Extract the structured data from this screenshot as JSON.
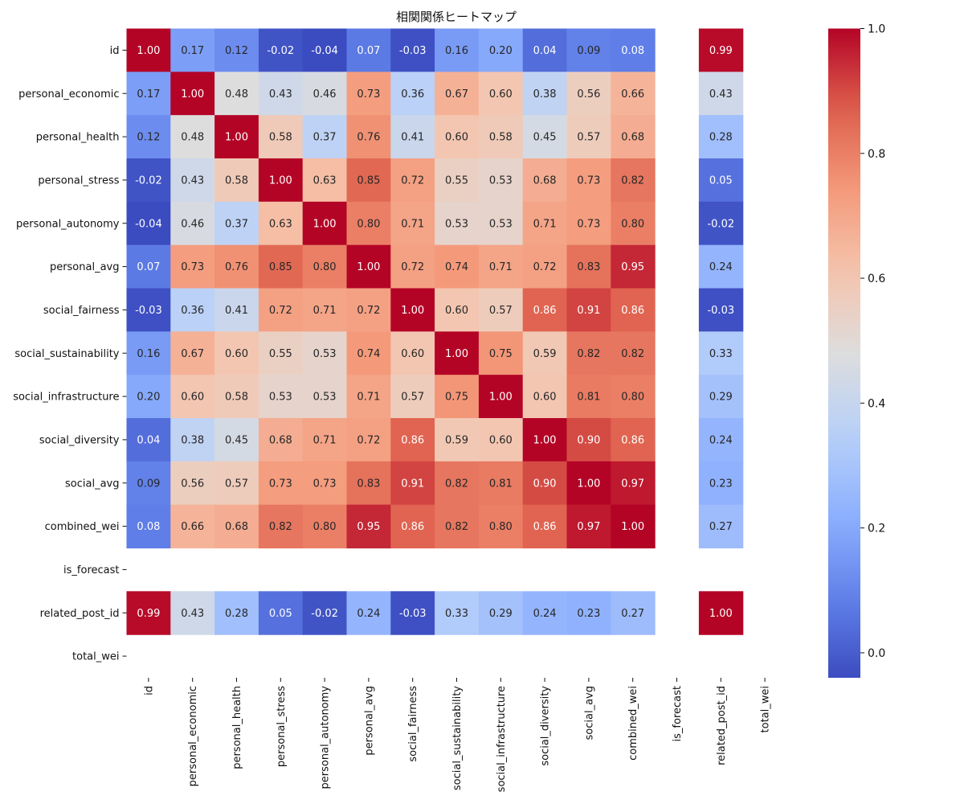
{
  "chart_data": {
    "type": "heatmap",
    "title": "相関関係ヒートマップ",
    "xlabel": "",
    "ylabel": "",
    "labels": [
      "id",
      "personal_economic",
      "personal_health",
      "personal_stress",
      "personal_autonomy",
      "personal_avg",
      "social_fairness",
      "social_sustainability",
      "social_infrastructure",
      "social_diversity",
      "social_avg",
      "combined_wei",
      "is_forecast",
      "related_post_id",
      "total_wei"
    ],
    "values": [
      [
        1.0,
        0.17,
        0.12,
        -0.02,
        -0.04,
        0.07,
        -0.03,
        0.16,
        0.2,
        0.04,
        0.09,
        0.08,
        null,
        0.99,
        null
      ],
      [
        0.17,
        1.0,
        0.48,
        0.43,
        0.46,
        0.73,
        0.36,
        0.67,
        0.6,
        0.38,
        0.56,
        0.66,
        null,
        0.43,
        null
      ],
      [
        0.12,
        0.48,
        1.0,
        0.58,
        0.37,
        0.76,
        0.41,
        0.6,
        0.58,
        0.45,
        0.57,
        0.68,
        null,
        0.28,
        null
      ],
      [
        -0.02,
        0.43,
        0.58,
        1.0,
        0.63,
        0.85,
        0.72,
        0.55,
        0.53,
        0.68,
        0.73,
        0.82,
        null,
        0.05,
        null
      ],
      [
        -0.04,
        0.46,
        0.37,
        0.63,
        1.0,
        0.8,
        0.71,
        0.53,
        0.53,
        0.71,
        0.73,
        0.8,
        null,
        -0.02,
        null
      ],
      [
        0.07,
        0.73,
        0.76,
        0.85,
        0.8,
        1.0,
        0.72,
        0.74,
        0.71,
        0.72,
        0.83,
        0.95,
        null,
        0.24,
        null
      ],
      [
        -0.03,
        0.36,
        0.41,
        0.72,
        0.71,
        0.72,
        1.0,
        0.6,
        0.57,
        0.86,
        0.91,
        0.86,
        null,
        -0.03,
        null
      ],
      [
        0.16,
        0.67,
        0.6,
        0.55,
        0.53,
        0.74,
        0.6,
        1.0,
        0.75,
        0.59,
        0.82,
        0.82,
        null,
        0.33,
        null
      ],
      [
        0.2,
        0.6,
        0.58,
        0.53,
        0.53,
        0.71,
        0.57,
        0.75,
        1.0,
        0.6,
        0.81,
        0.8,
        null,
        0.29,
        null
      ],
      [
        0.04,
        0.38,
        0.45,
        0.68,
        0.71,
        0.72,
        0.86,
        0.59,
        0.6,
        1.0,
        0.9,
        0.86,
        null,
        0.24,
        null
      ],
      [
        0.09,
        0.56,
        0.57,
        0.73,
        0.73,
        0.83,
        0.91,
        0.82,
        0.81,
        0.9,
        1.0,
        0.97,
        null,
        0.23,
        null
      ],
      [
        0.08,
        0.66,
        0.68,
        0.82,
        0.8,
        0.95,
        0.86,
        0.82,
        0.8,
        0.86,
        0.97,
        1.0,
        null,
        0.27,
        null
      ],
      [
        null,
        null,
        null,
        null,
        null,
        null,
        null,
        null,
        null,
        null,
        null,
        null,
        null,
        null,
        null
      ],
      [
        0.99,
        0.43,
        0.28,
        0.05,
        -0.02,
        0.24,
        -0.03,
        0.33,
        0.29,
        0.24,
        0.23,
        0.27,
        null,
        1.0,
        null
      ],
      [
        null,
        null,
        null,
        null,
        null,
        null,
        null,
        null,
        null,
        null,
        null,
        null,
        null,
        null,
        null
      ]
    ],
    "colormap": "coolwarm",
    "vmin": -0.04,
    "vmax": 1.0,
    "colorbar_ticks": [
      "0.0",
      "0.2",
      "0.4",
      "0.6",
      "0.8",
      "1.0"
    ],
    "colorbar_tick_values": [
      0.0,
      0.2,
      0.4,
      0.6,
      0.8,
      1.0
    ],
    "annotation_format": "2 decimals",
    "grid": false
  }
}
